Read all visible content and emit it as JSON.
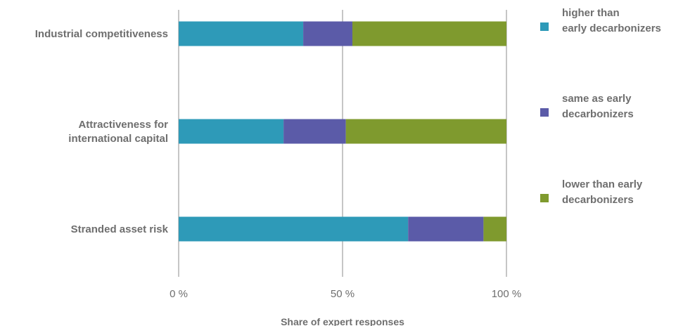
{
  "chart_data": {
    "type": "bar",
    "orientation": "horizontal",
    "stacked": true,
    "categories": [
      "Industrial competitiveness",
      "Attractiveness for international capital",
      "Stranded asset risk"
    ],
    "category_label_lines": [
      [
        "Industrial competitiveness"
      ],
      [
        "Attractiveness for",
        "international capital"
      ],
      [
        "Stranded asset risk"
      ]
    ],
    "series": [
      {
        "name": "higher than early decarbonizers",
        "legend_lines": [
          "higher than",
          "early decarbonizers"
        ],
        "color": "#2e9ab8",
        "values": [
          38,
          32,
          70
        ]
      },
      {
        "name": "same as early decarbonizers",
        "legend_lines": [
          "same as early",
          "decarbonizers"
        ],
        "color": "#5b5ba8",
        "values": [
          15,
          19,
          23
        ]
      },
      {
        "name": "lower than early decarbonizers",
        "legend_lines": [
          "lower than early",
          "decarbonizers"
        ],
        "color": "#7f9a2e",
        "values": [
          47,
          49,
          7
        ]
      }
    ],
    "xlim": [
      0,
      100
    ],
    "xticks": [
      0,
      50,
      100
    ],
    "xtick_labels": [
      "0 %",
      "50 %",
      "100 %"
    ],
    "xlabel": "Share of expert responses",
    "ylabel": "",
    "grid": "vertical",
    "legend_position": "right"
  }
}
